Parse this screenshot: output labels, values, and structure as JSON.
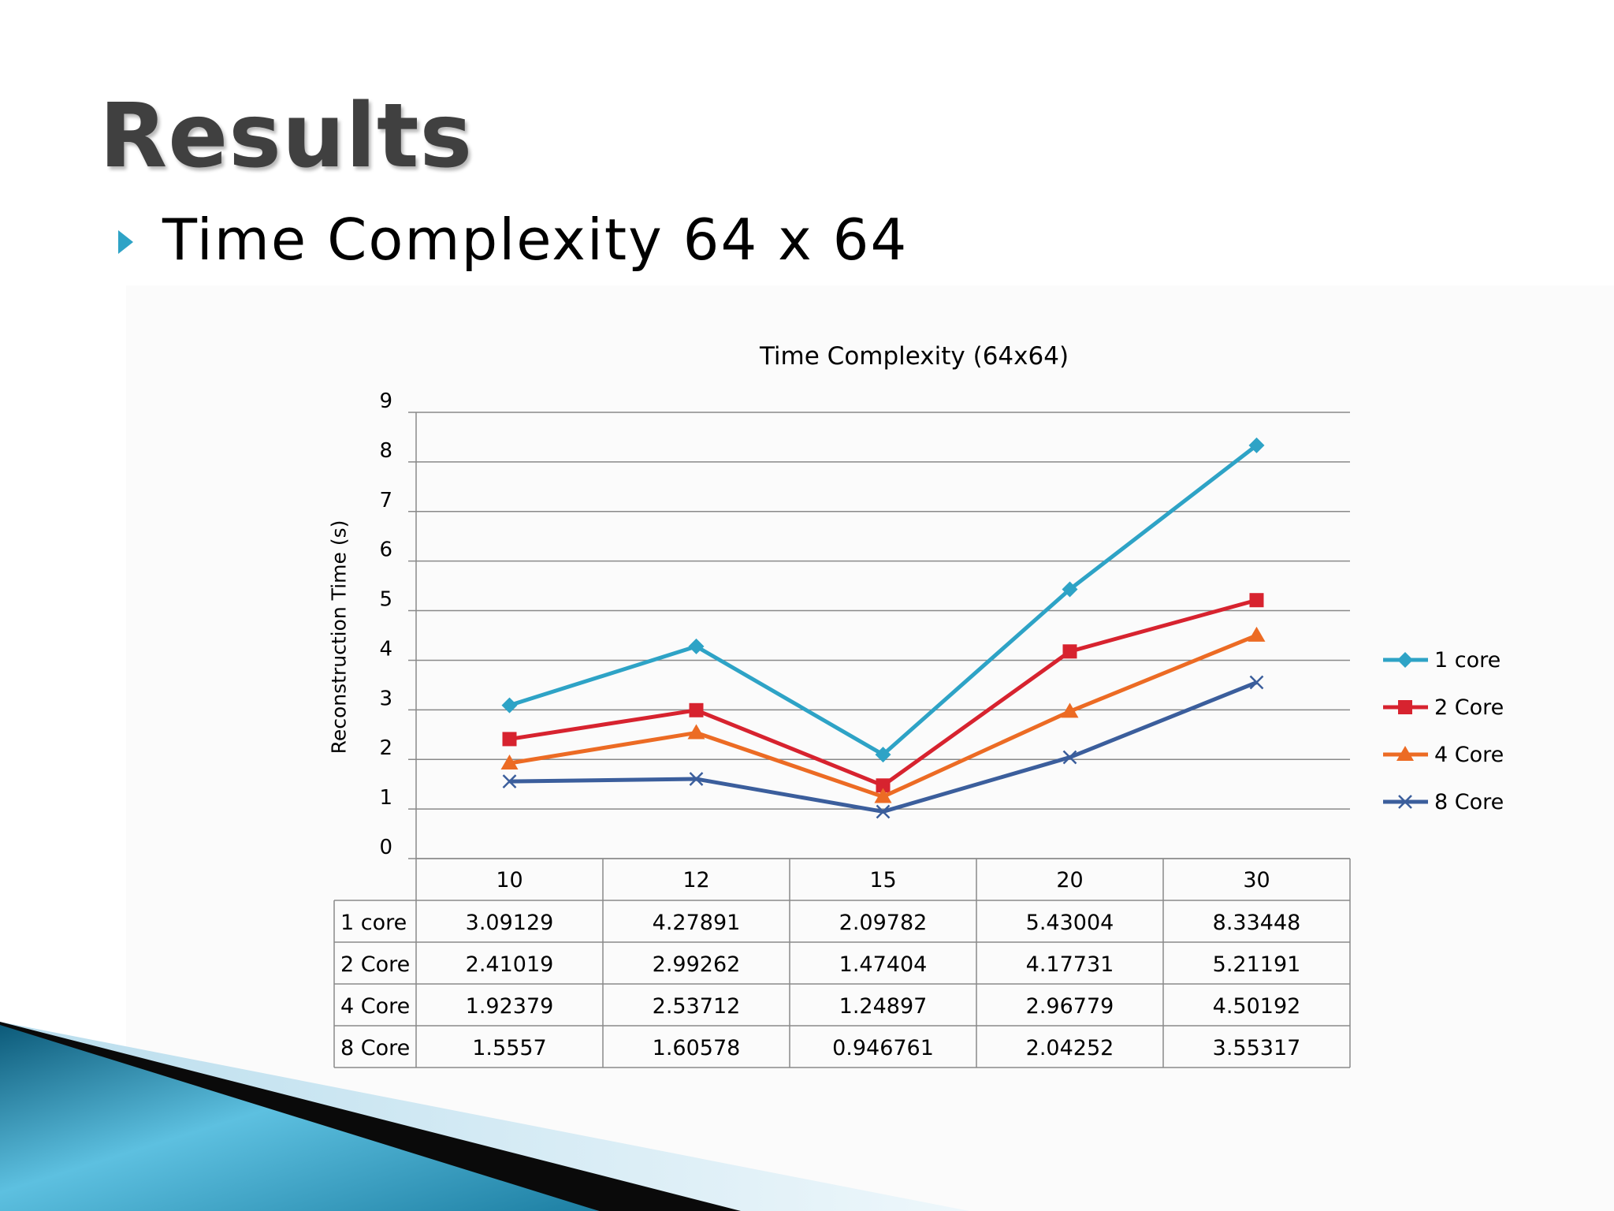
{
  "slide": {
    "title": "Results",
    "bullet": "Time Complexity 64 x 64"
  },
  "colors": {
    "accent": "#2ea3c6",
    "banner_dark": "#0e5f80",
    "banner_light": "#5fc0e0"
  },
  "chart_data": {
    "type": "line",
    "title": "Time Complexity (64x64)",
    "xlabel": "",
    "ylabel": "Reconstruction Time (s)",
    "ylim": [
      0,
      9
    ],
    "y_ticks": [
      0,
      1,
      2,
      3,
      4,
      5,
      6,
      7,
      8,
      9
    ],
    "grid": true,
    "legend_position": "right",
    "data_table": true,
    "categories": [
      "10",
      "12",
      "15",
      "20",
      "30"
    ],
    "series": [
      {
        "name": "1 core",
        "color": "#2ea3c6",
        "marker": "diamond",
        "values": [
          3.09129,
          4.27891,
          2.09782,
          5.43004,
          8.33448
        ]
      },
      {
        "name": "2 Core",
        "color": "#d7232f",
        "marker": "square",
        "values": [
          2.41019,
          2.99262,
          1.47404,
          4.17731,
          5.21191
        ]
      },
      {
        "name": "4 Core",
        "color": "#ec6b24",
        "marker": "triangle",
        "values": [
          1.92379,
          2.53712,
          1.24897,
          2.96779,
          4.50192
        ]
      },
      {
        "name": "8 Core",
        "color": "#3b5e9c",
        "marker": "x",
        "values": [
          1.5557,
          1.60578,
          0.946761,
          2.04252,
          3.55317
        ]
      }
    ],
    "table_values": [
      [
        "3.09129",
        "4.27891",
        "2.09782",
        "5.43004",
        "8.33448"
      ],
      [
        "2.41019",
        "2.99262",
        "1.47404",
        "4.17731",
        "5.21191"
      ],
      [
        "1.92379",
        "2.53712",
        "1.24897",
        "2.96779",
        "4.50192"
      ],
      [
        "1.5557",
        "1.60578",
        "0.946761",
        "2.04252",
        "3.55317"
      ]
    ]
  }
}
